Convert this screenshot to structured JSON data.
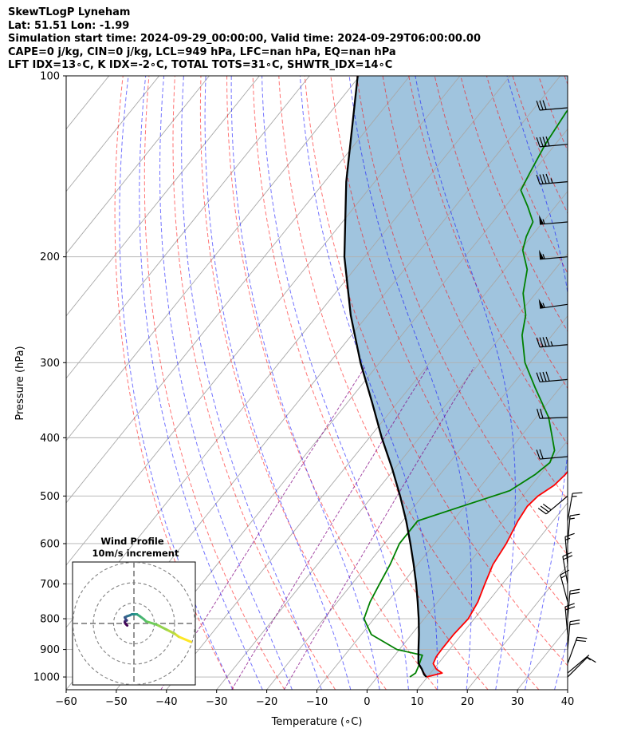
{
  "header": {
    "line1": "SkewTLogP Lyneham",
    "line2": "Lat: 51.51   Lon: -1.99",
    "line3": "Simulation start time: 2024-09-29_00:00:00, Valid time: 2024-09-29T06:00:00.00",
    "line4": "CAPE=0 j/kg, CIN=0 j/kg, LCL=949 hPa, LFC=nan hPa, EQ=nan hPa",
    "line5": "LFT IDX=13∘C, K IDX=-2∘C, TOTAL TOTS=31∘C, SHWTR_IDX=14∘C"
  },
  "colors": {
    "temperature": "#ff0000",
    "dewpoint": "#008000",
    "parcel": "#000000",
    "fill": "#a0c4de",
    "dry_adiabat": "#ff0000",
    "moist_adiabat": "#0000ff",
    "mixing_ratio": "#800080",
    "isotherm": "#808080"
  },
  "chart_data": [
    {
      "type": "line",
      "subtype": "skew-T log-P",
      "xlabel": "Temperature (∘C)",
      "ylabel": "Pressure (hPa)",
      "xlim": [
        -60,
        40
      ],
      "ylim": [
        1050,
        100
      ],
      "x_ticks": [
        "−60",
        "−50",
        "−40",
        "−30",
        "−20",
        "−10",
        "0",
        "10",
        "20",
        "30",
        "40"
      ],
      "y_ticks": [
        "100",
        "200",
        "300",
        "400",
        "500",
        "600",
        "700",
        "800",
        "900",
        "1000"
      ],
      "y_scale": "log",
      "grid": true,
      "series": [
        {
          "role": "temperature",
          "points": [
            [
              1000,
              9.8
            ],
            [
              985,
              12.3
            ],
            [
              970,
              10.5
            ],
            [
              950,
              9.0
            ],
            [
              925,
              8.5
            ],
            [
              900,
              8.4
            ],
            [
              850,
              8.4
            ],
            [
              800,
              8.8
            ],
            [
              750,
              8.0
            ],
            [
              700,
              6.5
            ],
            [
              650,
              5.0
            ],
            [
              600,
              4.3
            ],
            [
              550,
              3.0
            ],
            [
              520,
              2.5
            ],
            [
              500,
              3.0
            ],
            [
              480,
              4.5
            ],
            [
              460,
              5.0
            ],
            [
              430,
              5.0
            ],
            [
              400,
              4.0
            ],
            [
              380,
              2.0
            ],
            [
              350,
              -2.5
            ],
            [
              320,
              -7.5
            ],
            [
              300,
              -9.5
            ],
            [
              280,
              -11.0
            ],
            [
              260,
              -13.0
            ],
            [
              240,
              -14.5
            ],
            [
              220,
              -17.0
            ],
            [
              205,
              -19.0
            ],
            [
              200,
              -21.0
            ],
            [
              190,
              -24.0
            ],
            [
              180,
              -25.5
            ],
            [
              170,
              -27.5
            ],
            [
              160,
              -31.0
            ],
            [
              150,
              -34.0
            ],
            [
              140,
              -37.0
            ],
            [
              130,
              -39.5
            ],
            [
              120,
              -42.0
            ],
            [
              110,
              -45.5
            ],
            [
              100,
              -48.0
            ]
          ]
        },
        {
          "role": "dewpoint",
          "points": [
            [
              1000,
              6.5
            ],
            [
              985,
              7.0
            ],
            [
              960,
              6.5
            ],
            [
              920,
              5.5
            ],
            [
              900,
              -0.5
            ],
            [
              850,
              -8.0
            ],
            [
              800,
              -12.0
            ],
            [
              750,
              -13.5
            ],
            [
              700,
              -14.5
            ],
            [
              650,
              -15.5
            ],
            [
              600,
              -17.0
            ],
            [
              550,
              -17.0
            ],
            [
              520,
              -10.5
            ],
            [
              490,
              -3.5
            ],
            [
              460,
              -1.0
            ],
            [
              440,
              0.0
            ],
            [
              420,
              -1.0
            ],
            [
              400,
              -3.5
            ],
            [
              370,
              -7.5
            ],
            [
              330,
              -15.0
            ],
            [
              300,
              -21.0
            ],
            [
              270,
              -26.0
            ],
            [
              250,
              -28.5
            ],
            [
              230,
              -32.5
            ],
            [
              210,
              -35.5
            ],
            [
              195,
              -39.5
            ],
            [
              185,
              -41.0
            ],
            [
              175,
              -42.0
            ],
            [
              165,
              -45.5
            ],
            [
              155,
              -49.5
            ],
            [
              145,
              -50.5
            ],
            [
              130,
              -52.0
            ],
            [
              115,
              -53.0
            ],
            [
              100,
              -53.0
            ]
          ]
        },
        {
          "role": "parcel",
          "points": [
            [
              1000,
              9.8
            ],
            [
              990,
              8.9
            ],
            [
              970,
              7.6
            ],
            [
              949,
              6.0
            ],
            [
              900,
              3.8
            ],
            [
              850,
              1.5
            ],
            [
              800,
              -1.1
            ],
            [
              750,
              -4.0
            ],
            [
              700,
              -7.2
            ],
            [
              650,
              -10.8
            ],
            [
              600,
              -14.8
            ],
            [
              550,
              -19.3
            ],
            [
              500,
              -24.5
            ],
            [
              450,
              -30.5
            ],
            [
              400,
              -37.5
            ],
            [
              350,
              -45.0
            ],
            [
              300,
              -53.8
            ],
            [
              250,
              -63.4
            ],
            [
              200,
              -74.0
            ],
            [
              150,
              -85.7
            ],
            [
              100,
              -100.4
            ]
          ]
        }
      ],
      "wind_barbs": [
        {
          "p": 1000,
          "speed_kt": 10,
          "dir_deg": 45
        },
        {
          "p": 985,
          "speed_kt": 5,
          "dir_deg": 50
        },
        {
          "p": 950,
          "speed_kt": 20,
          "dir_deg": 20
        },
        {
          "p": 900,
          "speed_kt": 20,
          "dir_deg": 5
        },
        {
          "p": 850,
          "speed_kt": 20,
          "dir_deg": 355
        },
        {
          "p": 800,
          "speed_kt": 20,
          "dir_deg": 5
        },
        {
          "p": 750,
          "speed_kt": 15,
          "dir_deg": 345
        },
        {
          "p": 700,
          "speed_kt": 20,
          "dir_deg": 350
        },
        {
          "p": 650,
          "speed_kt": 15,
          "dir_deg": 355
        },
        {
          "p": 600,
          "speed_kt": 15,
          "dir_deg": 5
        },
        {
          "p": 550,
          "speed_kt": 15,
          "dir_deg": 10
        },
        {
          "p": 500,
          "speed_kt": 30,
          "dir_deg": 230
        },
        {
          "p": 430,
          "speed_kt": 20,
          "dir_deg": 265
        },
        {
          "p": 370,
          "speed_kt": 20,
          "dir_deg": 268
        },
        {
          "p": 320,
          "speed_kt": 40,
          "dir_deg": 265
        },
        {
          "p": 280,
          "speed_kt": 45,
          "dir_deg": 265
        },
        {
          "p": 240,
          "speed_kt": 55,
          "dir_deg": 262
        },
        {
          "p": 200,
          "speed_kt": 55,
          "dir_deg": 265
        },
        {
          "p": 175,
          "speed_kt": 55,
          "dir_deg": 265
        },
        {
          "p": 150,
          "speed_kt": 45,
          "dir_deg": 265
        },
        {
          "p": 130,
          "speed_kt": 40,
          "dir_deg": 265
        },
        {
          "p": 113,
          "speed_kt": 30,
          "dir_deg": 265
        }
      ]
    },
    {
      "type": "line",
      "subtype": "hodograph",
      "title": "Wind Profile",
      "subtitle": "10m/s increment",
      "ring_spacing_ms": 10,
      "rings": 3,
      "points": [
        [
          28,
          -9
        ],
        [
          22,
          -6.5
        ],
        [
          20,
          -5
        ],
        [
          16,
          -3
        ],
        [
          11,
          -0.5
        ],
        [
          6,
          1
        ],
        [
          5,
          2
        ],
        [
          3,
          3.5
        ],
        [
          1.5,
          4.5
        ],
        [
          0,
          4.5
        ],
        [
          -1,
          4.5
        ],
        [
          -2,
          4
        ],
        [
          -3.5,
          3.5
        ],
        [
          -4.5,
          3
        ],
        [
          -4,
          2
        ],
        [
          -3.5,
          1.5
        ],
        [
          -4.5,
          1
        ],
        [
          -4.5,
          0.5
        ],
        [
          -4,
          -0.3
        ],
        [
          -3.3,
          -1
        ]
      ]
    }
  ]
}
